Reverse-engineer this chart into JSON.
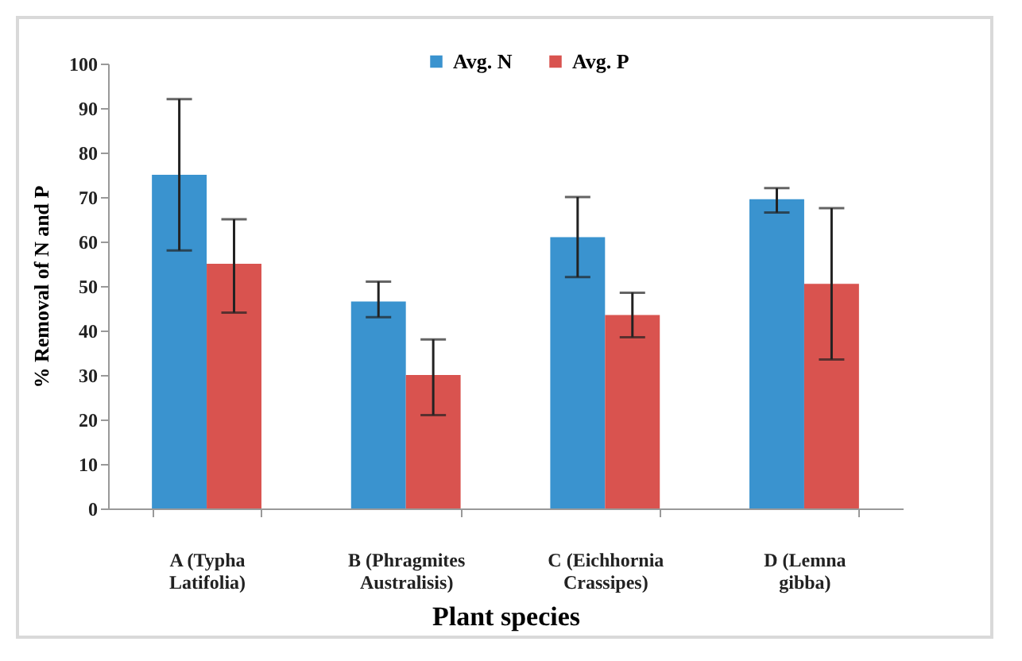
{
  "chart_data": {
    "type": "bar",
    "xlabel": "Plant species",
    "ylabel": "% Removal of N and P",
    "categories": [
      "A (Typha\nLatifolia)",
      "B (Phragmites\nAustralisis)",
      "C (Eichhornia\nCrassipes)",
      "D (Lemna\ngibba)"
    ],
    "series": [
      {
        "name": "Avg. N",
        "color": "#3a93cf",
        "values": [
          75,
          46.5,
          61,
          69.5
        ],
        "errors": [
          [
            58,
            92
          ],
          [
            43,
            51
          ],
          [
            52,
            70
          ],
          [
            66.5,
            72
          ]
        ]
      },
      {
        "name": "Avg. P",
        "color": "#d9534f",
        "values": [
          55,
          30,
          43.5,
          50.5
        ],
        "errors": [
          [
            44,
            65
          ],
          [
            21,
            38
          ],
          [
            38.5,
            48.5
          ],
          [
            33.5,
            67.5
          ]
        ]
      }
    ],
    "ylim": [
      0,
      100
    ],
    "yticks": [
      0,
      10,
      20,
      30,
      40,
      50,
      60,
      70,
      80,
      90,
      100
    ],
    "grid": false,
    "legend": "top"
  }
}
